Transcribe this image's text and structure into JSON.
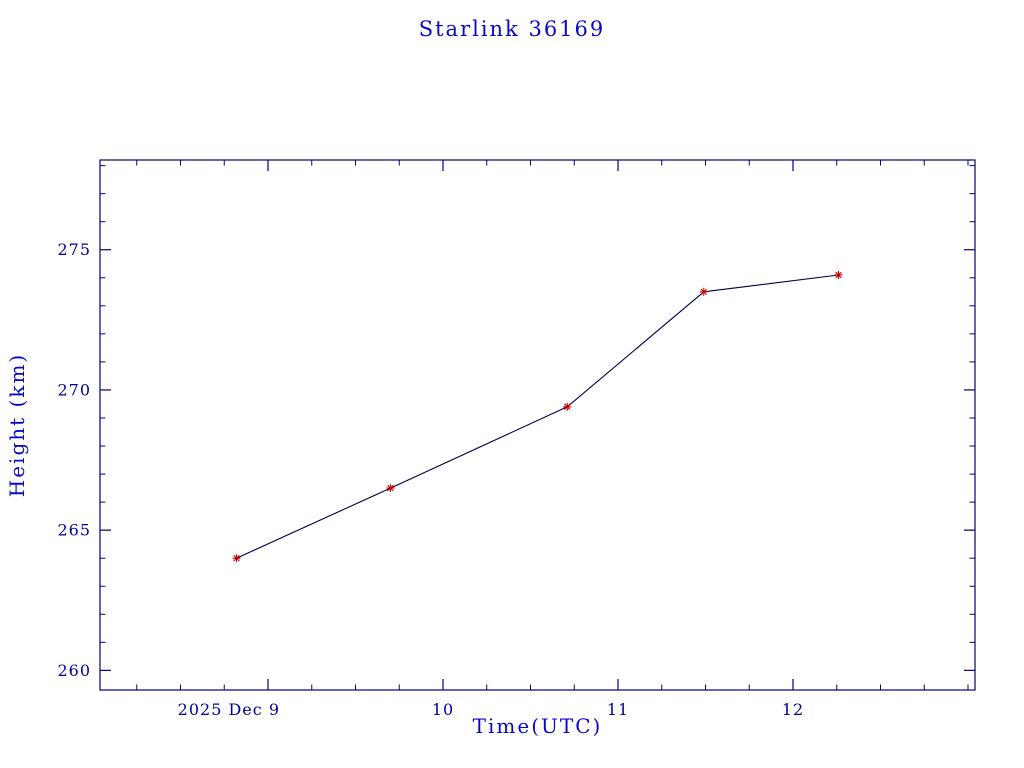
{
  "page": {
    "background": "#ffffff"
  },
  "chart_data": {
    "type": "line",
    "title": "Starlink 36169",
    "xlabel": "Time(UTC)",
    "ylabel": "Height (km)",
    "x": [
      8.82,
      9.7,
      10.71,
      11.49,
      12.26
    ],
    "series": [
      {
        "name": "height_km",
        "values": [
          264.0,
          266.5,
          269.4,
          273.5,
          274.1
        ]
      }
    ],
    "xlim": [
      8.04,
      13.04
    ],
    "ylim": [
      259.3,
      278.2
    ],
    "xticks": [
      {
        "value": 9,
        "label": "2025 Dec 9"
      },
      {
        "value": 10,
        "label": "10"
      },
      {
        "value": 11,
        "label": "11"
      },
      {
        "value": 12,
        "label": "12"
      }
    ],
    "yticks": [
      {
        "value": 260,
        "label": "260"
      },
      {
        "value": 265,
        "label": "265"
      },
      {
        "value": 270,
        "label": "270"
      },
      {
        "value": 275,
        "label": "275"
      }
    ],
    "x_minor_step": 0.25,
    "y_minor_step": 1,
    "grid": false,
    "legend_position": "none",
    "marker": "asterisk",
    "colors": {
      "frame": "#000080",
      "line": "#00004f",
      "marker": "#cc0000",
      "text": "#0808c8",
      "tick_text": "#000099"
    }
  }
}
